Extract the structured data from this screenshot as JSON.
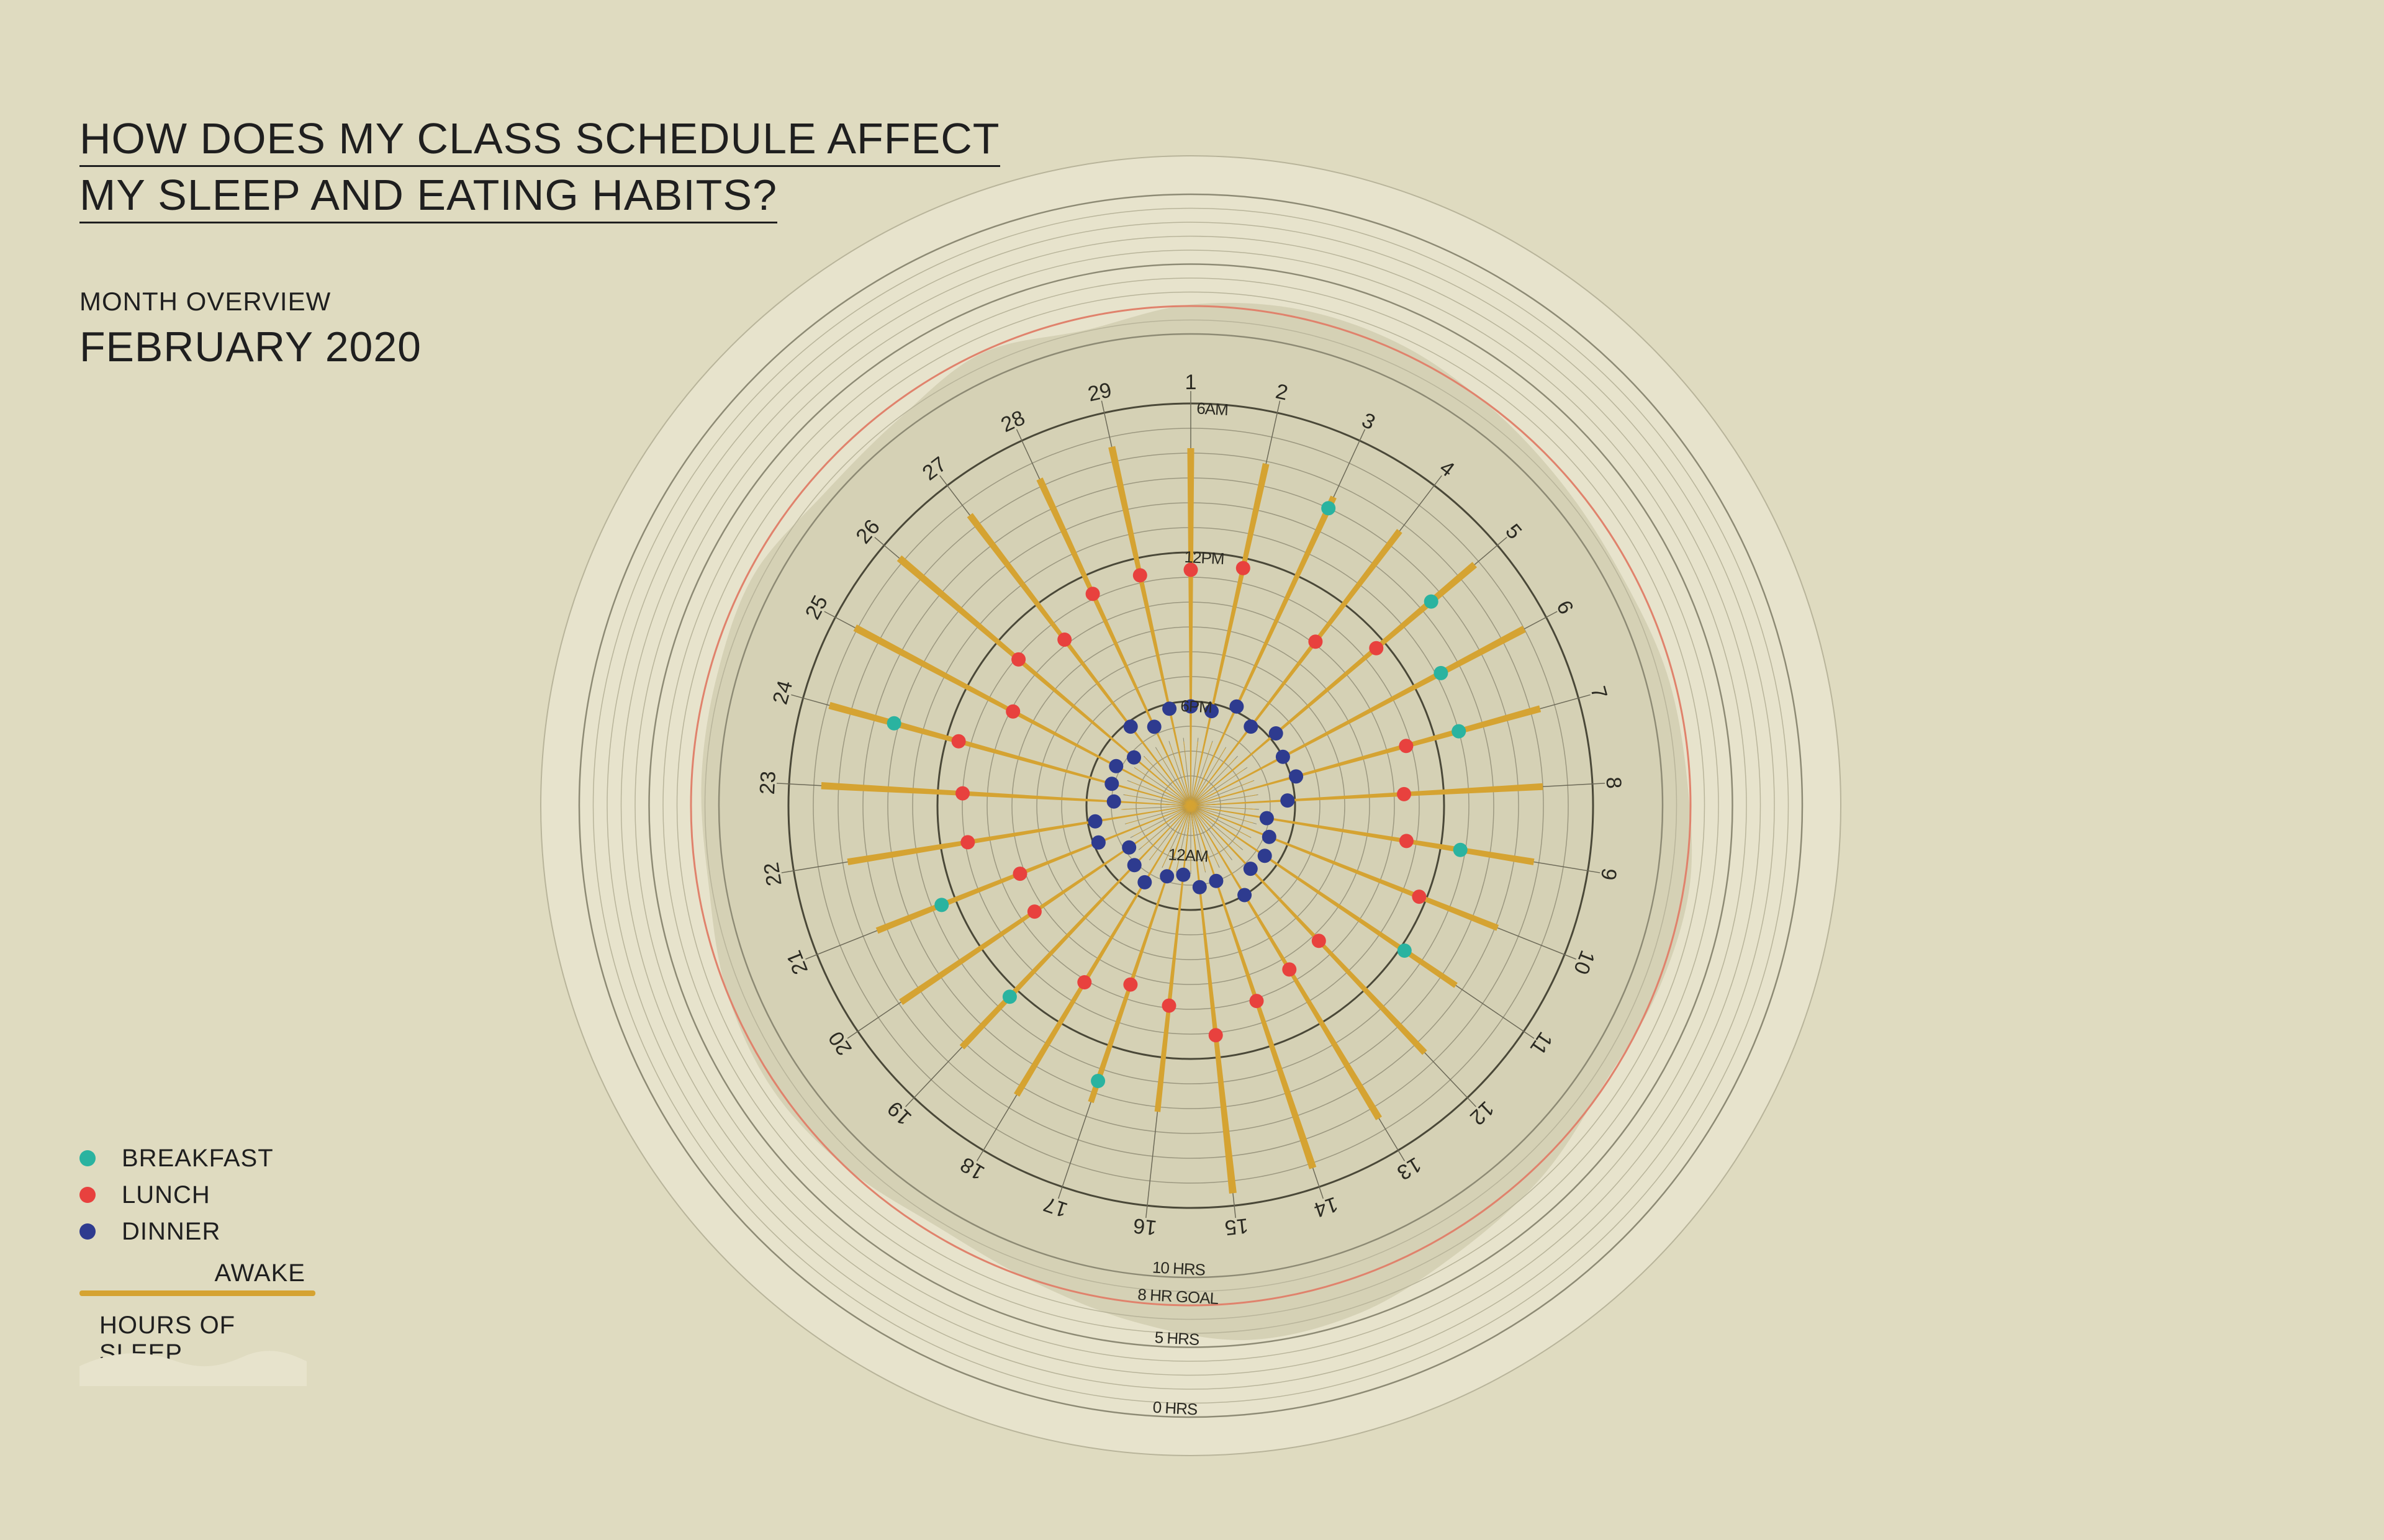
{
  "header": {
    "title_line1": "HOW DOES MY CLASS SCHEDULE AFFECT",
    "title_line2": "MY SLEEP AND EATING HABITS?",
    "subtitle": "MONTH OVERVIEW",
    "period": "FEBRUARY 2020"
  },
  "legend": {
    "breakfast": "BREAKFAST",
    "lunch": "LUNCH",
    "dinner": "DINNER",
    "awake": "AWAKE",
    "hours_of_sleep": "HOURS OF SLEEP"
  },
  "colors": {
    "background": "#dfdbc0",
    "breakfast": "#2ab3a0",
    "lunch": "#e8413e",
    "dinner": "#2e3b8f",
    "awake": "#d5a332",
    "sleep_area": "#cfcbae",
    "outer_disc": "#e7e3cc",
    "goal_ring": "#e0826c"
  },
  "chart_data": {
    "type": "radial",
    "days": [
      1,
      2,
      3,
      4,
      5,
      6,
      7,
      8,
      9,
      10,
      11,
      12,
      13,
      14,
      15,
      16,
      17,
      18,
      19,
      20,
      21,
      22,
      23,
      24,
      25,
      26,
      27,
      28,
      29
    ],
    "time_labels": [
      "6AM",
      "12PM",
      "6PM",
      "12AM"
    ],
    "time_scale_hours": [
      6,
      12,
      18,
      24
    ],
    "sleep_labels": [
      "10 HRS",
      "8 HR GOAL",
      "5 HRS",
      "0 HRS"
    ],
    "sleep_scale_hours": [
      10,
      8,
      5,
      0
    ],
    "wake_time_hours": [
      7.8,
      8.1,
      8.5,
      8.3,
      7.2,
      7.0,
      7.6,
      8.0,
      8.2,
      8.9,
      9.3,
      8.5,
      7.5,
      6.8,
      6.5,
      9.8,
      9.6,
      8.6,
      8.8,
      8.1,
      8.6,
      8.2,
      7.3,
      7.1,
      6.9,
      6.8,
      7.5,
      7.7,
      7.4
    ],
    "bed_time_hours": [
      24.8,
      24.9,
      24.9,
      24.9,
      24.8,
      24.8,
      24.9,
      25.0,
      24.9,
      24.8,
      24.9,
      24.9,
      24.8,
      24.8,
      24.8,
      24.8,
      24.9,
      24.9,
      24.8,
      24.8,
      24.9,
      24.9,
      24.8,
      24.8,
      24.9,
      24.8,
      24.8,
      24.8,
      24.9
    ],
    "breakfast_hours": [
      null,
      null,
      9.0,
      null,
      9.5,
      10.8,
      11.0,
      null,
      11.2,
      null,
      11.8,
      null,
      null,
      null,
      null,
      null,
      10.5,
      null,
      11.6,
      null,
      11.4,
      null,
      null,
      9.8,
      null,
      null,
      null,
      null,
      null
    ],
    "lunch_hours": [
      12.7,
      12.4,
      null,
      13.9,
      12.4,
      null,
      13.2,
      13.6,
      13.4,
      12.3,
      null,
      14.7,
      14.5,
      13.9,
      12.9,
      14.1,
      14.6,
      13.9,
      null,
      14.6,
      14.8,
      13.1,
      13.0,
      12.5,
      14.1,
      13.1,
      13.8,
      12.8,
      12.7
    ],
    "dinner_hours": [
      18.2,
      18.3,
      17.8,
      18.2,
      17.7,
      18.0,
      17.8,
      18.3,
      19.1,
      18.8,
      18.6,
      18.7,
      18.0,
      19.0,
      18.9,
      19.4,
      19.2,
      18.6,
      18.9,
      19.2,
      18.2,
      18.3,
      19.1,
      18.9,
      18.8,
      19.2,
      18.2,
      18.7,
      18.2
    ],
    "sleep_hours": [
      7.9,
      7.4,
      7.5,
      8.1,
      8.6,
      8.8,
      8.4,
      8.2,
      7.6,
      7.8,
      8.1,
      7.2,
      6.5,
      5.5,
      5.3,
      6.6,
      7.9,
      8.6,
      8.0,
      7.6,
      8.0,
      8.8,
      8.7,
      8.6,
      8.4,
      9.3,
      9.1,
      8.1,
      8.9
    ],
    "sleep_goal_hours": 8
  }
}
